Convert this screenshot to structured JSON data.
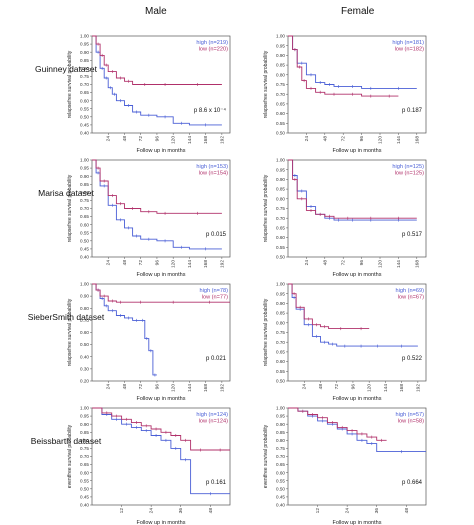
{
  "columns": [
    "Male",
    "Female"
  ],
  "rows": [
    "Guinney dataset",
    "Marisa dataset",
    "SieberSmith dataset",
    "Beissbarth dataset"
  ],
  "colors": {
    "high": "#4a5fd6",
    "low": "#b0306a"
  },
  "chart_data": [
    {
      "type": "line",
      "dataset": "Guinney",
      "sex": "Male",
      "ylabel": "relapsefree survival probability",
      "xlabel": "Follow up in months",
      "xticks": [
        24,
        48,
        72,
        96,
        120,
        144,
        168,
        192
      ],
      "xlim": [
        0,
        204
      ],
      "yticks": [
        0.4,
        0.45,
        0.5,
        0.55,
        0.6,
        0.65,
        0.7,
        0.75,
        0.8,
        0.85,
        0.9,
        0.95,
        1.0
      ],
      "ytick_labels": [
        "0.40",
        "0.45",
        "0.50",
        "0.55",
        "0.60",
        "0.65",
        "0.70",
        "0.75",
        "0.80",
        "0.85",
        "0.90",
        "0.95",
        "1.00"
      ],
      "ylim": [
        0.4,
        1.0
      ],
      "pvalue": "p 8.6 x 10⁻⁴",
      "series": [
        {
          "name": "high (n=219)",
          "color": "#4a5fd6",
          "x": [
            0,
            6,
            12,
            18,
            24,
            30,
            36,
            48,
            60,
            72,
            96,
            120,
            144,
            192
          ],
          "y": [
            1.0,
            0.9,
            0.8,
            0.74,
            0.68,
            0.64,
            0.6,
            0.57,
            0.53,
            0.51,
            0.5,
            0.46,
            0.45,
            0.45
          ]
        },
        {
          "name": "low (n=220)",
          "color": "#b0306a",
          "x": [
            0,
            6,
            12,
            18,
            24,
            36,
            48,
            60,
            96,
            120,
            192
          ],
          "y": [
            1.0,
            0.95,
            0.88,
            0.82,
            0.78,
            0.74,
            0.72,
            0.7,
            0.7,
            0.7,
            0.7
          ]
        }
      ]
    },
    {
      "type": "line",
      "dataset": "Guinney",
      "sex": "Female",
      "ylabel": "relapsefree survival probability",
      "xlabel": "Follow up in months",
      "xticks": [
        24,
        48,
        72,
        96,
        120,
        144,
        168
      ],
      "xlim": [
        0,
        180
      ],
      "yticks": [
        0.5,
        0.55,
        0.6,
        0.65,
        0.7,
        0.75,
        0.8,
        0.85,
        0.9,
        0.95,
        1.0
      ],
      "ytick_labels": [
        "0.50",
        "0.55",
        "0.60",
        "0.65",
        "0.70",
        "0.75",
        "0.80",
        "0.85",
        "0.90",
        "0.95",
        "1.00"
      ],
      "ylim": [
        0.5,
        1.0
      ],
      "pvalue": "p 0.187",
      "series": [
        {
          "name": "high (n=181)",
          "color": "#4a5fd6",
          "x": [
            0,
            6,
            12,
            24,
            36,
            48,
            60,
            72,
            96,
            120,
            168
          ],
          "y": [
            1.0,
            0.93,
            0.86,
            0.8,
            0.76,
            0.75,
            0.74,
            0.74,
            0.73,
            0.73,
            0.73
          ]
        },
        {
          "name": "low (n=182)",
          "color": "#b0306a",
          "x": [
            0,
            6,
            12,
            18,
            24,
            36,
            48,
            72,
            96,
            120,
            144
          ],
          "y": [
            1.0,
            0.93,
            0.84,
            0.77,
            0.73,
            0.71,
            0.7,
            0.7,
            0.69,
            0.69,
            0.69
          ]
        }
      ]
    },
    {
      "type": "line",
      "dataset": "Marisa",
      "sex": "Male",
      "ylabel": "relapsefree survival probability",
      "xlabel": "Follow up in months",
      "xticks": [
        24,
        48,
        72,
        96,
        120,
        144,
        168,
        192
      ],
      "xlim": [
        0,
        204
      ],
      "yticks": [
        0.4,
        0.45,
        0.5,
        0.55,
        0.6,
        0.65,
        0.7,
        0.75,
        0.8,
        0.85,
        0.9,
        0.95,
        1.0
      ],
      "ytick_labels": [
        "0.40",
        "0.45",
        "0.50",
        "0.55",
        "0.60",
        "0.65",
        "0.70",
        "0.75",
        "0.80",
        "0.85",
        "0.90",
        "0.95",
        "1.00"
      ],
      "ylim": [
        0.4,
        1.0
      ],
      "pvalue": "p 0.015",
      "series": [
        {
          "name": "high (n=153)",
          "color": "#4a5fd6",
          "x": [
            0,
            6,
            12,
            24,
            36,
            48,
            60,
            72,
            96,
            120,
            144,
            192
          ],
          "y": [
            1.0,
            0.92,
            0.84,
            0.72,
            0.63,
            0.58,
            0.53,
            0.51,
            0.5,
            0.46,
            0.45,
            0.45
          ]
        },
        {
          "name": "low (n=154)",
          "color": "#b0306a",
          "x": [
            0,
            6,
            12,
            24,
            36,
            48,
            72,
            96,
            120,
            192
          ],
          "y": [
            1.0,
            0.95,
            0.87,
            0.78,
            0.73,
            0.7,
            0.68,
            0.67,
            0.67,
            0.67
          ]
        }
      ]
    },
    {
      "type": "line",
      "dataset": "Marisa",
      "sex": "Female",
      "ylabel": "relapsefree survival probability",
      "xlabel": "Follow up in months",
      "xticks": [
        24,
        48,
        72,
        96,
        120,
        144,
        168
      ],
      "xlim": [
        0,
        180
      ],
      "yticks": [
        0.5,
        0.55,
        0.6,
        0.65,
        0.7,
        0.75,
        0.8,
        0.85,
        0.9,
        0.95,
        1.0
      ],
      "ytick_labels": [
        "0.50",
        "0.55",
        "0.60",
        "0.65",
        "0.70",
        "0.75",
        "0.80",
        "0.85",
        "0.90",
        "0.95",
        "1.00"
      ],
      "ylim": [
        0.5,
        1.0
      ],
      "pvalue": "p 0.517",
      "series": [
        {
          "name": "high (n=125)",
          "color": "#4a5fd6",
          "x": [
            0,
            6,
            12,
            24,
            36,
            48,
            60,
            72,
            96,
            120,
            168
          ],
          "y": [
            1.0,
            0.92,
            0.84,
            0.76,
            0.72,
            0.7,
            0.69,
            0.69,
            0.69,
            0.69,
            0.69
          ]
        },
        {
          "name": "low (n=125)",
          "color": "#b0306a",
          "x": [
            0,
            6,
            12,
            24,
            36,
            48,
            60,
            96,
            120,
            168
          ],
          "y": [
            1.0,
            0.9,
            0.8,
            0.74,
            0.72,
            0.71,
            0.7,
            0.7,
            0.7,
            0.7
          ]
        }
      ]
    },
    {
      "type": "line",
      "dataset": "SieberSmith",
      "sex": "Male",
      "ylabel": "relapsefree survival probability",
      "xlabel": "Follow up in months",
      "xticks": [
        24,
        48,
        72,
        96,
        120,
        144,
        168,
        192
      ],
      "xlim": [
        0,
        204
      ],
      "yticks": [
        0.2,
        0.3,
        0.4,
        0.5,
        0.6,
        0.7,
        0.8,
        0.9,
        1.0
      ],
      "ytick_labels": [
        "0.20",
        "0.30",
        "0.40",
        "0.50",
        "0.60",
        "0.70",
        "0.80",
        "0.90",
        "1.00"
      ],
      "ylim": [
        0.2,
        1.0
      ],
      "pvalue": "p 0.021",
      "series": [
        {
          "name": "high (n=78)",
          "color": "#4a5fd6",
          "x": [
            0,
            6,
            12,
            18,
            24,
            36,
            48,
            60,
            72,
            78,
            84,
            90,
            96
          ],
          "y": [
            1.0,
            0.95,
            0.88,
            0.82,
            0.78,
            0.74,
            0.72,
            0.7,
            0.7,
            0.55,
            0.45,
            0.25,
            0.25
          ]
        },
        {
          "name": "low (n=77)",
          "color": "#b0306a",
          "x": [
            0,
            6,
            12,
            24,
            36,
            48,
            96,
            144,
            204
          ],
          "y": [
            1.0,
            0.95,
            0.9,
            0.86,
            0.85,
            0.85,
            0.85,
            0.85,
            0.85
          ]
        }
      ]
    },
    {
      "type": "line",
      "dataset": "SieberSmith",
      "sex": "Female",
      "ylabel": "relapsefree survival probability",
      "xlabel": "Follow up in months",
      "xticks": [
        24,
        48,
        72,
        96,
        120,
        144,
        168,
        192
      ],
      "xlim": [
        0,
        204
      ],
      "yticks": [
        0.5,
        0.55,
        0.6,
        0.65,
        0.7,
        0.75,
        0.8,
        0.85,
        0.9,
        0.95,
        1.0
      ],
      "ytick_labels": [
        "0.50",
        "0.55",
        "0.60",
        "0.65",
        "0.70",
        "0.75",
        "0.80",
        "0.85",
        "0.90",
        "0.95",
        "1.00"
      ],
      "ylim": [
        0.5,
        1.0
      ],
      "pvalue": "p 0.522",
      "series": [
        {
          "name": "high (n=69)",
          "color": "#4a5fd6",
          "x": [
            0,
            6,
            12,
            24,
            36,
            48,
            60,
            72,
            96,
            120,
            144,
            192
          ],
          "y": [
            1.0,
            0.93,
            0.87,
            0.79,
            0.73,
            0.7,
            0.69,
            0.68,
            0.68,
            0.68,
            0.68,
            0.68
          ]
        },
        {
          "name": "low (n=67)",
          "color": "#b0306a",
          "x": [
            0,
            6,
            12,
            24,
            36,
            48,
            60,
            96,
            120
          ],
          "y": [
            1.0,
            0.95,
            0.88,
            0.82,
            0.79,
            0.78,
            0.77,
            0.77,
            0.77
          ]
        }
      ]
    },
    {
      "type": "line",
      "dataset": "Beissbarth",
      "sex": "Male",
      "ylabel": "eventfree survival probability",
      "xlabel": "Follow up in months",
      "xticks": [
        12,
        24,
        36,
        48
      ],
      "xlim": [
        0,
        56
      ],
      "yticks": [
        0.4,
        0.45,
        0.5,
        0.55,
        0.6,
        0.65,
        0.7,
        0.75,
        0.8,
        0.85,
        0.9,
        0.95,
        1.0
      ],
      "ytick_labels": [
        "0.40",
        "0.45",
        "0.50",
        "0.55",
        "0.60",
        "0.65",
        "0.70",
        "0.75",
        "0.80",
        "0.85",
        "0.90",
        "0.95",
        "1.00"
      ],
      "ylim": [
        0.4,
        1.0
      ],
      "pvalue": "p 0.161",
      "series": [
        {
          "name": "high (n=124)",
          "color": "#4a5fd6",
          "x": [
            0,
            4,
            8,
            12,
            16,
            20,
            24,
            28,
            32,
            36,
            40,
            56
          ],
          "y": [
            1.0,
            0.96,
            0.93,
            0.9,
            0.88,
            0.86,
            0.83,
            0.8,
            0.75,
            0.68,
            0.47,
            0.47
          ]
        },
        {
          "name": "low (n=124)",
          "color": "#b0306a",
          "x": [
            0,
            4,
            8,
            12,
            16,
            20,
            24,
            28,
            32,
            36,
            40,
            48,
            56
          ],
          "y": [
            1.0,
            0.97,
            0.95,
            0.93,
            0.91,
            0.89,
            0.87,
            0.85,
            0.83,
            0.8,
            0.74,
            0.74,
            0.74
          ]
        }
      ]
    },
    {
      "type": "line",
      "dataset": "Beissbarth",
      "sex": "Female",
      "ylabel": "eventfree survival probability",
      "xlabel": "Follow up in months",
      "xticks": [
        12,
        24,
        36,
        48
      ],
      "xlim": [
        0,
        56
      ],
      "yticks": [
        0.4,
        0.45,
        0.5,
        0.55,
        0.6,
        0.65,
        0.7,
        0.75,
        0.8,
        0.85,
        0.9,
        0.95,
        1.0
      ],
      "ytick_labels": [
        "0.40",
        "0.45",
        "0.50",
        "0.55",
        "0.60",
        "0.65",
        "0.70",
        "0.75",
        "0.80",
        "0.85",
        "0.90",
        "0.95",
        "1.00"
      ],
      "ylim": [
        0.4,
        1.0
      ],
      "pvalue": "p 0.664",
      "series": [
        {
          "name": "high (n=57)",
          "color": "#4a5fd6",
          "x": [
            0,
            4,
            8,
            12,
            16,
            20,
            24,
            28,
            32,
            36,
            56
          ],
          "y": [
            1.0,
            0.98,
            0.95,
            0.92,
            0.9,
            0.87,
            0.84,
            0.8,
            0.78,
            0.73,
            0.73
          ]
        },
        {
          "name": "low (n=58)",
          "color": "#b0306a",
          "x": [
            0,
            4,
            8,
            12,
            16,
            20,
            24,
            28,
            32,
            36,
            40
          ],
          "y": [
            1.0,
            0.98,
            0.96,
            0.94,
            0.91,
            0.88,
            0.86,
            0.84,
            0.82,
            0.8,
            0.8
          ]
        }
      ]
    }
  ]
}
